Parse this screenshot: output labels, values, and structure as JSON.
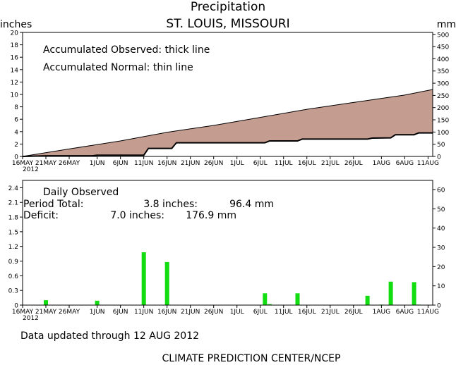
{
  "page": {
    "title": "Precipitation",
    "subtitle": "ST. LOUIS, MISSOURI",
    "left_unit": "inches",
    "right_unit": "mm",
    "updated": "Data updated through 12 AUG 2012",
    "credit": "CLIMATE PREDICTION CENTER/NCEP"
  },
  "chart_data": [
    {
      "type": "area",
      "notes": [
        "Accumulated Observed: thick line",
        "Accumulated Normal: thin line"
      ],
      "x_start": "2012-05-16",
      "x_end": "2012-08-12",
      "x_ticks": [
        "16MAY",
        "21MAY",
        "26MAY",
        "1JUN",
        "6JUN",
        "11JUN",
        "16JUN",
        "21JUN",
        "26JUN",
        "1JUL",
        "6JUL",
        "11JUL",
        "16JUL",
        "21JUL",
        "26JUL",
        "1AUG",
        "6AUG",
        "11AUG"
      ],
      "x_tick_year": "2012",
      "ylim": [
        0,
        20
      ],
      "y_ticks": [
        0,
        2,
        4,
        6,
        8,
        10,
        12,
        14,
        16,
        18,
        20
      ],
      "y2lim": [
        0,
        508
      ],
      "y2_ticks": [
        0,
        50,
        100,
        150,
        200,
        250,
        300,
        350,
        400,
        450,
        500
      ],
      "fill_color": "#c49c90",
      "series": [
        {
          "name": "Accumulated Normal",
          "points": [
            [
              "2012-05-16",
              0
            ],
            [
              "2012-05-26",
              1.2
            ],
            [
              "2012-06-06",
              2.5
            ],
            [
              "2012-06-16",
              3.9
            ],
            [
              "2012-06-26",
              5.0
            ],
            [
              "2012-07-06",
              6.3
            ],
            [
              "2012-07-16",
              7.6
            ],
            [
              "2012-07-26",
              8.7
            ],
            [
              "2012-08-06",
              9.9
            ],
            [
              "2012-08-12",
              10.8
            ]
          ]
        },
        {
          "name": "Accumulated Observed",
          "points": [
            [
              "2012-05-16",
              0
            ],
            [
              "2012-05-21",
              0.1
            ],
            [
              "2012-05-31",
              0.1
            ],
            [
              "2012-06-01",
              0.2
            ],
            [
              "2012-06-11",
              0.2
            ],
            [
              "2012-06-12",
              1.3
            ],
            [
              "2012-06-17",
              1.3
            ],
            [
              "2012-06-18",
              2.2
            ],
            [
              "2012-07-07",
              2.2
            ],
            [
              "2012-07-08",
              2.5
            ],
            [
              "2012-07-14",
              2.5
            ],
            [
              "2012-07-15",
              2.8
            ],
            [
              "2012-07-29",
              2.8
            ],
            [
              "2012-07-30",
              2.95
            ],
            [
              "2012-08-03",
              3.0
            ],
            [
              "2012-08-04",
              3.5
            ],
            [
              "2012-08-08",
              3.5
            ],
            [
              "2012-08-09",
              3.8
            ],
            [
              "2012-08-12",
              3.8
            ]
          ]
        }
      ]
    },
    {
      "type": "bar",
      "title": "Daily Observed",
      "summary": [
        {
          "label": "Period Total:",
          "inches": "3.8 inches:",
          "mm": "96.4 mm"
        },
        {
          "label": "Deficit:",
          "inches": "7.0 inches:",
          "mm": "176.9 mm"
        }
      ],
      "x_start": "2012-05-16",
      "x_end": "2012-08-12",
      "x_ticks": [
        "16MAY",
        "21MAY",
        "26MAY",
        "1JUN",
        "6JUN",
        "11JUN",
        "16JUN",
        "21JUN",
        "26JUN",
        "1JUL",
        "6JUL",
        "11JUL",
        "16JUL",
        "21JUL",
        "26JUL",
        "1AUG",
        "6AUG",
        "11AUG"
      ],
      "x_tick_year": "2012",
      "ylim": [
        0,
        2.55
      ],
      "y_ticks": [
        "0",
        "0.3",
        "0.6",
        "0.9",
        "1.2",
        "1.5",
        "1.8",
        "2.1",
        "2.4"
      ],
      "y2lim": [
        0,
        64.77
      ],
      "y2_ticks": [
        0,
        10,
        20,
        30,
        40,
        50,
        60
      ],
      "bar_color": "#11dd11",
      "bars": [
        [
          "2012-05-21",
          0.1
        ],
        [
          "2012-06-01",
          0.09
        ],
        [
          "2012-06-11",
          1.08
        ],
        [
          "2012-06-16",
          0.88
        ],
        [
          "2012-07-07",
          0.24
        ],
        [
          "2012-07-08",
          0.02
        ],
        [
          "2012-07-14",
          0.24
        ],
        [
          "2012-07-29",
          0.19
        ],
        [
          "2012-08-01",
          0.01
        ],
        [
          "2012-08-03",
          0.48
        ],
        [
          "2012-08-08",
          0.47
        ],
        [
          "2012-08-09",
          0.01
        ]
      ]
    }
  ]
}
